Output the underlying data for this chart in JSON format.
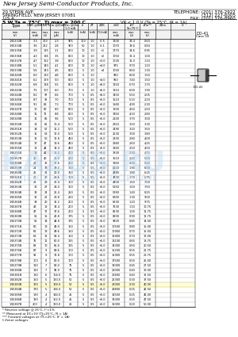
{
  "company_name": "New Jersey Semi-Conductor Products, Inc.",
  "address_line1": "20 STERN AVE.",
  "address_line2": "SPRINGFIELD, NEW JERSEY 07081",
  "address_line3": "U.S.A.",
  "phone1": "TELEPHONE: (201) 376-2922",
  "phone2": "(312) 227-6005",
  "fax": "FAX: (201) 376-8960",
  "section_header": "5 W,Ta = 75°C  Tj max = 200 C",
  "vr_condition": "VR < 1.0 V (Ta = 25°C, IR = 1A)",
  "rows": [
    [
      "1N5333B",
      "3.3",
      "303",
      "2.3",
      "905",
      "100",
      "1.0",
      "-6.5",
      "1200",
      "33.4",
      "0.60"
    ],
    [
      "1N5334B",
      "3.6",
      "222",
      "2.8",
      "900",
      "50",
      "1.0",
      "-6.1",
      "1070",
      "19.6",
      "0.84"
    ],
    [
      "1N5335B",
      "3.9",
      "185",
      "3.1",
      "800",
      "10",
      "1.0",
      "+1",
      "1770",
      "14.6",
      "0.95"
    ],
    [
      "1N5336B",
      "4.3",
      "186",
      "3.5",
      "800",
      "10",
      "1.0",
      "+2",
      "1050",
      "12.4",
      "1.00"
    ],
    [
      "1N5337B",
      "4.7",
      "162",
      "3.8",
      "800",
      "10",
      "1.0",
      "+3.0",
      "1000",
      "11.0",
      "1.10"
    ],
    [
      "1N5338B",
      "5.1",
      "140",
      "4.1",
      "800",
      "10",
      "1.0",
      "+4.0",
      "975",
      "9.70",
      "1.20"
    ],
    [
      "1N5339B",
      "5.6",
      "143",
      "4.5",
      "800",
      "5",
      "1.0",
      "+4",
      "1060",
      "8.60",
      "1.30"
    ],
    [
      "1N5340B",
      "6.0",
      "133",
      "4.8",
      "800",
      "5",
      "1.0",
      "",
      "980",
      "8.00",
      "1.50"
    ],
    [
      "1N5341B",
      "6.2",
      "129",
      "5.0",
      "800",
      "5",
      "1.0",
      "+4.0",
      "950",
      "7.40",
      "1.50"
    ],
    [
      "1N5342B",
      "6.8",
      "118",
      "5.5",
      "800",
      "5",
      "1.0",
      "+6.0",
      "1250",
      "6.70",
      "1.70"
    ],
    [
      "1N5343B",
      "7.5",
      "107",
      "6.0",
      "700",
      "5",
      "1.0",
      "+6.0",
      "1310",
      "6.00",
      "1.90"
    ],
    [
      "1N5344B",
      "8.2",
      "97",
      "6.6",
      "700",
      "5",
      "0.5",
      "+6.0",
      "1450",
      "5.50",
      "2.05"
    ],
    [
      "1N5345B",
      "8.7",
      "92",
      "7.0",
      "700",
      "5",
      "0.5",
      "+5.0",
      "1510",
      "5.10",
      "2.20"
    ],
    [
      "1N5346B",
      "9.1",
      "88",
      "7.3",
      "700",
      "5",
      "0.5",
      "+5.0",
      "1580",
      "4.90",
      "2.30"
    ],
    [
      "1N5347B",
      "10",
      "80",
      "8.0",
      "600",
      "5",
      "0.5",
      "+5.0",
      "1800",
      "4.50",
      "2.50"
    ],
    [
      "1N5348B",
      "11",
      "72",
      "8.8",
      "600",
      "5",
      "0.5",
      "+5.0",
      "1950",
      "4.10",
      "2.80"
    ],
    [
      "1N5349B",
      "12",
      "66",
      "9.6",
      "500",
      "5",
      "0.5",
      "+5.0",
      "2100",
      "3.70",
      "3.00"
    ],
    [
      "1N5350B",
      "13",
      "61",
      "10.4",
      "500",
      "5",
      "0.5",
      "+5.0",
      "2310",
      "3.50",
      "3.30"
    ],
    [
      "1N5351B",
      "14",
      "57",
      "11.2",
      "500",
      "5",
      "0.5",
      "+5.0",
      "2490",
      "3.20",
      "3.50"
    ],
    [
      "1N5352B",
      "15",
      "53",
      "12.0",
      "500",
      "5",
      "0.5",
      "+5.0",
      "2630",
      "3.00",
      "3.80"
    ],
    [
      "1N5353B",
      "16",
      "50",
      "12.8",
      "450",
      "5",
      "0.5",
      "+5.0",
      "2800",
      "2.80",
      "4.00"
    ],
    [
      "1N5354B",
      "17",
      "47",
      "13.6",
      "450",
      "5",
      "0.5",
      "+5.0",
      "2980",
      "2.60",
      "4.25"
    ],
    [
      "1N5355B",
      "18",
      "44",
      "14.4",
      "450",
      "5",
      "0.5",
      "+5.0",
      "3160",
      "2.50",
      "4.50"
    ],
    [
      "1N5356B",
      "19",
      "42",
      "15.2",
      "400",
      "5",
      "0.5",
      "+5.0",
      "3330",
      "2.30",
      "4.75"
    ],
    [
      "1N5357B",
      "20",
      "40",
      "16.0",
      "400",
      "5",
      "0.5",
      "+5.0",
      "3510",
      "2.20",
      "5.00"
    ],
    [
      "1N5358B",
      "22",
      "36",
      "17.6",
      "400",
      "5",
      "0.5",
      "+5.0",
      "3860",
      "2.00",
      "5.50"
    ],
    [
      "1N5359B",
      "24",
      "33",
      "19.2",
      "350",
      "5",
      "0.5",
      "+5.0",
      "4210",
      "1.90",
      "6.00"
    ],
    [
      "1N5360B",
      "25",
      "32",
      "20.0",
      "350",
      "5",
      "0.5",
      "+5.0",
      "4380",
      "1.80",
      "6.25"
    ],
    [
      "1N5361B",
      "27",
      "30",
      "21.6",
      "300",
      "5",
      "0.5",
      "+5.0",
      "4730",
      "1.70",
      "6.75"
    ],
    [
      "1N5362B",
      "28",
      "29",
      "22.4",
      "300",
      "5",
      "0.5",
      "+5.0",
      "4900",
      "1.60",
      "7.00"
    ],
    [
      "1N5363B",
      "30",
      "27",
      "24.0",
      "300",
      "5",
      "0.5",
      "+5.0",
      "5250",
      "1.50",
      "7.50"
    ],
    [
      "1N5364B",
      "33",
      "24",
      "26.4",
      "250",
      "5",
      "0.5",
      "+5.0",
      "5780",
      "1.40",
      "8.25"
    ],
    [
      "1N5365B",
      "36",
      "22",
      "28.8",
      "250",
      "5",
      "0.5",
      "+5.0",
      "6300",
      "1.30",
      "9.00"
    ],
    [
      "1N5366B",
      "39",
      "20",
      "31.2",
      "200",
      "5",
      "0.5",
      "+5.0",
      "6830",
      "1.20",
      "9.75"
    ],
    [
      "1N5367B",
      "43",
      "18",
      "34.4",
      "200",
      "5",
      "0.5",
      "+5.0",
      "7530",
      "1.10",
      "10.75"
    ],
    [
      "1N5368B",
      "47",
      "17",
      "37.6",
      "200",
      "5",
      "0.5",
      "+5.0",
      "8230",
      "1.00",
      "11.75"
    ],
    [
      "1N5369B",
      "51",
      "15",
      "40.8",
      "175",
      "5",
      "0.5",
      "+5.0",
      "8930",
      "0.90",
      "12.75"
    ],
    [
      "1N5370B",
      "56",
      "14",
      "44.8",
      "175",
      "5",
      "0.5",
      "+5.0",
      "9800",
      "0.85",
      "14.00"
    ],
    [
      "1N5371B",
      "60",
      "13",
      "48.0",
      "150",
      "5",
      "0.5",
      "+5.0",
      "10500",
      "0.80",
      "15.00"
    ],
    [
      "1N5372B",
      "62",
      "13",
      "49.6",
      "150",
      "5",
      "0.5",
      "+5.0",
      "10900",
      "0.75",
      "15.50"
    ],
    [
      "1N5373B",
      "68",
      "12",
      "54.4",
      "150",
      "5",
      "0.5",
      "+5.0",
      "11900",
      "0.70",
      "17.00"
    ],
    [
      "1N5374B",
      "75",
      "11",
      "60.0",
      "125",
      "5",
      "0.5",
      "+5.0",
      "13100",
      "0.65",
      "18.75"
    ],
    [
      "1N5375B",
      "82",
      "10",
      "65.6",
      "125",
      "5",
      "0.5",
      "+5.0",
      "14300",
      "0.60",
      "20.50"
    ],
    [
      "1N5376B",
      "87",
      "9",
      "69.6",
      "100",
      "5",
      "0.5",
      "+5.0",
      "15200",
      "0.55",
      "21.75"
    ],
    [
      "1N5377B",
      "91",
      "9",
      "72.8",
      "100",
      "5",
      "0.5",
      "+5.0",
      "15900",
      "0.55",
      "22.75"
    ],
    [
      "1N5378B",
      "100",
      "8",
      "80.0",
      "100",
      "5",
      "0.5",
      "+5.0",
      "17500",
      "0.50",
      "25.00"
    ],
    [
      "1N5379B",
      "110",
      "7",
      "88.0",
      "75",
      "5",
      "0.5",
      "+5.0",
      "19300",
      "0.45",
      "27.50"
    ],
    [
      "1N5380B",
      "120",
      "7",
      "96.0",
      "75",
      "5",
      "0.5",
      "+5.0",
      "21000",
      "0.40",
      "30.00"
    ],
    [
      "1N5381B",
      "130",
      "6",
      "104.0",
      "75",
      "5",
      "0.5",
      "+5.0",
      "22800",
      "0.40",
      "32.50"
    ],
    [
      "1N5382B",
      "150",
      "5",
      "120.0",
      "50",
      "5",
      "0.5",
      "+5.0",
      "26300",
      "0.30",
      "37.50"
    ],
    [
      "1N5383B",
      "160",
      "5",
      "128.0",
      "50",
      "5",
      "0.5",
      "+5.0",
      "28000",
      "0.30",
      "40.00"
    ],
    [
      "1N5384B",
      "170",
      "5",
      "136.0",
      "50",
      "5",
      "0.5",
      "+5.0",
      "29800",
      "0.25",
      "42.50"
    ],
    [
      "1N5385B",
      "180",
      "4",
      "144.0",
      "25",
      "5",
      "0.5",
      "+5.0",
      "31500",
      "0.25",
      "45.00"
    ],
    [
      "1N5386B",
      "190",
      "4",
      "152.0",
      "25",
      "5",
      "0.5",
      "+5.0",
      "33300",
      "0.25",
      "47.50"
    ],
    [
      "1N5387B",
      "200",
      "4",
      "160.0",
      "25",
      "5",
      "0.5",
      "+5.0",
      "35000",
      "0.20",
      "50.00"
    ]
  ],
  "highlight_type": "1N5383B",
  "footnotes": [
    "* Reverse voltage @ 25°C, I°=1%",
    "** Measured at DC=1V (TJ=25°C, IR = 1A)",
    "*** Forward voltages at (TC=25°C, IF = 1A)",
    "† Zener voltages"
  ]
}
